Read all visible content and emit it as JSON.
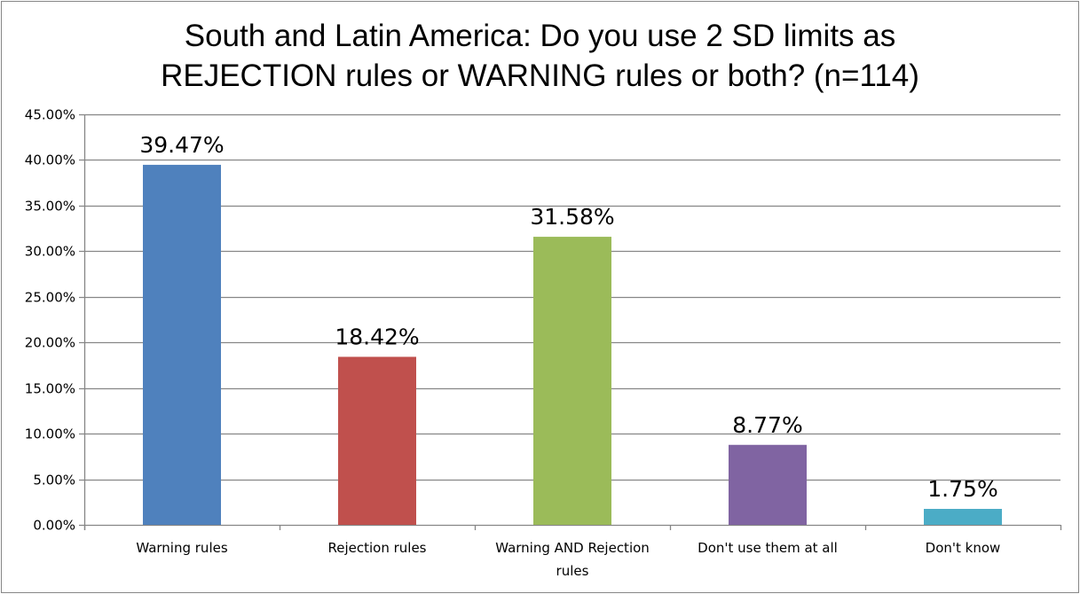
{
  "chart_data": {
    "type": "bar",
    "title_lines": [
      "South and Latin America: Do you use 2 SD limits as",
      "REJECTION rules or WARNING rules or both? (n=114)"
    ],
    "categories": [
      "Warning rules",
      "Rejection rules",
      "Warning AND Rejection rules",
      "Don't use them at all",
      "Don't know"
    ],
    "category_lines": [
      [
        "Warning rules"
      ],
      [
        "Rejection rules"
      ],
      [
        "Warning AND Rejection",
        "rules"
      ],
      [
        "Don't use them at all"
      ],
      [
        "Don't know"
      ]
    ],
    "values": [
      39.47,
      18.42,
      31.58,
      8.77,
      1.75
    ],
    "data_labels": [
      "39.47%",
      "18.42%",
      "31.58%",
      "8.77%",
      "1.75%"
    ],
    "colors": [
      "#4F81BD",
      "#C0504D",
      "#9BBB59",
      "#8064A2",
      "#4BACC6"
    ],
    "ylim": [
      0,
      45
    ],
    "yticks": [
      0,
      5,
      10,
      15,
      20,
      25,
      30,
      35,
      40,
      45
    ],
    "ytick_labels": [
      "0.00%",
      "5.00%",
      "10.00%",
      "15.00%",
      "20.00%",
      "25.00%",
      "30.00%",
      "35.00%",
      "40.00%",
      "45.00%"
    ],
    "grid": true,
    "legend": "none",
    "xlabel": "",
    "ylabel": ""
  }
}
